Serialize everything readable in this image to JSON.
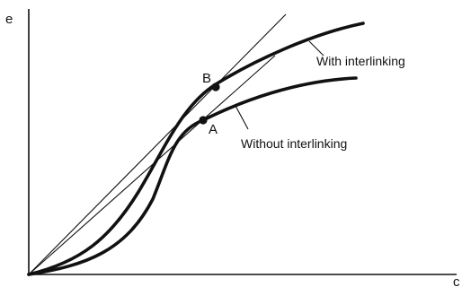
{
  "axes": {
    "y_label": "e",
    "x_label": "c"
  },
  "points": {
    "a_label": "A",
    "b_label": "B"
  },
  "curves": {
    "with_label": "With interlinking",
    "without_label": "Without interlinking"
  },
  "colors": {
    "ink": "#111111"
  }
}
